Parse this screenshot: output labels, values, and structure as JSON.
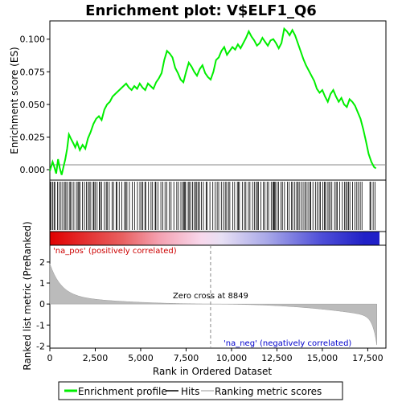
{
  "chart_data": {
    "type": "line",
    "title": "Enrichment plot: V$ELF1_Q6",
    "xlabel": "Rank in Ordered Dataset",
    "ylabel_top": "Enrichment score (ES)",
    "ylabel_bottom": "Ranked list metric (PreRanked)",
    "xlim": [
      0,
      18500
    ],
    "x_ticks": [
      0,
      2500,
      5000,
      7500,
      10000,
      12500,
      15000,
      17500
    ],
    "x_tick_labels": [
      "0",
      "2,500",
      "5,000",
      "7,500",
      "10,000",
      "12,500",
      "15,000",
      "17,500"
    ],
    "es_ylim": [
      -0.008,
      0.114
    ],
    "es_ticks": [
      0.0,
      0.025,
      0.05,
      0.075,
      0.1
    ],
    "es_tick_labels": [
      "0.000",
      "0.025",
      "0.050",
      "0.075",
      "0.100"
    ],
    "metric_ylim": [
      -2.1,
      2.8
    ],
    "metric_ticks": [
      -2,
      -1,
      0,
      1,
      2
    ],
    "metric_tick_labels": [
      "-2",
      "-1",
      "0",
      "1",
      "2"
    ],
    "zero_cross_rank": 8849,
    "zero_cross_label": "Zero cross at 8849",
    "pos_label": "'na_pos' (positively correlated)",
    "neg_label": "'na_neg' (negatively correlated)",
    "n_genes": 18000,
    "series": [
      {
        "name": "Enrichment profile",
        "color": "#00ee00",
        "x": [
          0,
          150,
          250,
          350,
          450,
          550,
          650,
          750,
          850,
          950,
          1050,
          1150,
          1300,
          1400,
          1500,
          1650,
          1800,
          1950,
          2100,
          2250,
          2400,
          2550,
          2700,
          2850,
          3000,
          3150,
          3300,
          3450,
          3600,
          3750,
          3900,
          4050,
          4200,
          4350,
          4500,
          4650,
          4800,
          4950,
          5100,
          5250,
          5400,
          5550,
          5700,
          5850,
          6000,
          6150,
          6300,
          6450,
          6600,
          6750,
          6900,
          7050,
          7200,
          7350,
          7500,
          7650,
          7800,
          7950,
          8100,
          8250,
          8400,
          8550,
          8700,
          8850,
          9000,
          9150,
          9300,
          9450,
          9600,
          9750,
          9900,
          10050,
          10200,
          10350,
          10500,
          10650,
          10800,
          10950,
          11100,
          11250,
          11400,
          11550,
          11700,
          11850,
          12000,
          12150,
          12300,
          12450,
          12600,
          12750,
          12900,
          13050,
          13200,
          13350,
          13500,
          13650,
          13800,
          13950,
          14100,
          14250,
          14400,
          14550,
          14700,
          14850,
          15000,
          15150,
          15300,
          15450,
          15600,
          15750,
          15900,
          16050,
          16200,
          16350,
          16500,
          16650,
          16800,
          16950,
          17100,
          17250,
          17400,
          17550,
          17700,
          17850,
          17950
        ],
        "y": [
          -0.001,
          0.006,
          0.002,
          -0.003,
          0.008,
          0.001,
          -0.004,
          0.002,
          0.008,
          0.016,
          0.027,
          0.024,
          0.02,
          0.017,
          0.021,
          0.015,
          0.019,
          0.016,
          0.024,
          0.029,
          0.035,
          0.039,
          0.041,
          0.038,
          0.046,
          0.05,
          0.052,
          0.056,
          0.058,
          0.06,
          0.062,
          0.064,
          0.066,
          0.063,
          0.061,
          0.064,
          0.062,
          0.066,
          0.063,
          0.061,
          0.066,
          0.064,
          0.062,
          0.067,
          0.07,
          0.074,
          0.084,
          0.091,
          0.089,
          0.086,
          0.078,
          0.074,
          0.069,
          0.067,
          0.075,
          0.082,
          0.079,
          0.075,
          0.072,
          0.077,
          0.08,
          0.074,
          0.071,
          0.069,
          0.075,
          0.084,
          0.086,
          0.091,
          0.094,
          0.088,
          0.091,
          0.094,
          0.092,
          0.096,
          0.093,
          0.097,
          0.101,
          0.106,
          0.102,
          0.099,
          0.095,
          0.097,
          0.101,
          0.098,
          0.095,
          0.099,
          0.1,
          0.097,
          0.093,
          0.097,
          0.108,
          0.106,
          0.103,
          0.107,
          0.103,
          0.097,
          0.091,
          0.085,
          0.08,
          0.076,
          0.072,
          0.068,
          0.062,
          0.059,
          0.061,
          0.056,
          0.052,
          0.058,
          0.061,
          0.056,
          0.052,
          0.055,
          0.05,
          0.048,
          0.054,
          0.052,
          0.049,
          0.044,
          0.039,
          0.031,
          0.022,
          0.012,
          0.006,
          0.002,
          0.001
        ]
      }
    ],
    "legend": [
      {
        "label": "Enrichment profile",
        "color": "#00ee00"
      },
      {
        "label": "Hits",
        "color": "#000000"
      },
      {
        "label": "Ranking metric scores",
        "color": "#bbbbbb"
      }
    ],
    "legend_position": "bottom",
    "grid": false
  }
}
